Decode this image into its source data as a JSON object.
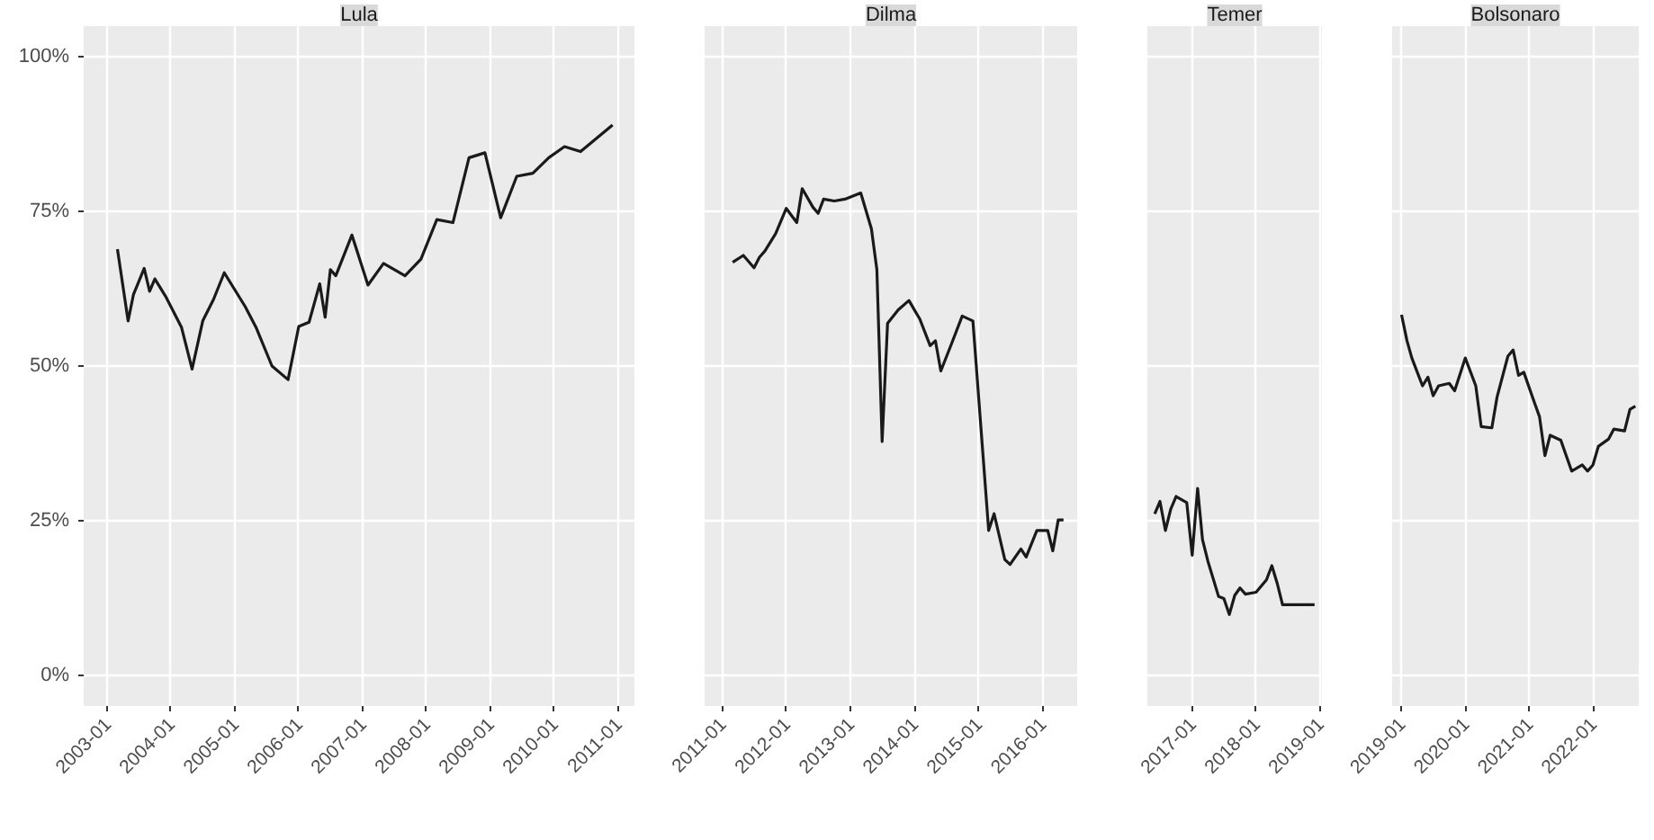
{
  "chart_data": [
    {
      "type": "line",
      "title": "Lula",
      "grid": true,
      "xlim": [
        "2002-08-20",
        "2011-04-05"
      ],
      "ylim": [
        -5,
        105
      ],
      "xticks": [
        "2003-01",
        "2004-01",
        "2005-01",
        "2006-01",
        "2007-01",
        "2008-01",
        "2009-01",
        "2010-01",
        "2011-01"
      ],
      "yticks": [
        {
          "value": 0,
          "label": "0%"
        },
        {
          "value": 25,
          "label": "25%"
        },
        {
          "value": 50,
          "label": "50%"
        },
        {
          "value": 75,
          "label": "75%"
        },
        {
          "value": 100,
          "label": "100%"
        }
      ],
      "x": [
        "2003-03",
        "2003-05",
        "2003-06",
        "2003-08",
        "2003-09",
        "2003-10",
        "2003-12",
        "2004-03",
        "2004-05",
        "2004-07",
        "2004-09",
        "2004-11",
        "2005-03",
        "2005-05",
        "2005-08",
        "2005-11",
        "2006-01",
        "2006-03",
        "2006-05",
        "2006-06",
        "2006-07",
        "2006-08",
        "2006-11",
        "2007-02",
        "2007-05",
        "2007-09",
        "2007-12",
        "2008-03",
        "2008-06",
        "2008-09",
        "2008-12",
        "2009-03",
        "2009-06",
        "2009-09",
        "2009-12",
        "2010-03",
        "2010-06",
        "2010-12"
      ],
      "series": [
        {
          "color": "#1a1a1a",
          "values": [
            68.9,
            57.3,
            61.6,
            65.8,
            62.1,
            64.1,
            61.3,
            56.3,
            49.5,
            57.3,
            60.8,
            65.1,
            59.6,
            56.3,
            50.0,
            47.8,
            56.4,
            57.1,
            63.3,
            57.9,
            65.6,
            64.6,
            71.2,
            63.1,
            66.6,
            64.6,
            67.3,
            73.7,
            73.2,
            83.7,
            84.5,
            74.0,
            80.7,
            81.2,
            83.7,
            85.5,
            84.7,
            89.0
          ]
        }
      ]
    },
    {
      "type": "line",
      "title": "Dilma",
      "grid": true,
      "tick_labels": "x",
      "xlim": [
        "2010-09-22",
        "2016-07-18"
      ],
      "ylim": [
        -5,
        105
      ],
      "xticks": [
        "2011-01",
        "2012-01",
        "2013-01",
        "2014-01",
        "2015-01",
        "2016-01"
      ],
      "yticks": [
        0,
        25,
        50,
        75,
        100
      ],
      "x": [
        "2011-03",
        "2011-05",
        "2011-07",
        "2011-08",
        "2011-09",
        "2011-11",
        "2012-01",
        "2012-03",
        "2012-04",
        "2012-06",
        "2012-07",
        "2012-08",
        "2012-10",
        "2012-12",
        "2013-03",
        "2013-05",
        "2013-06",
        "2013-07",
        "2013-08",
        "2013-10",
        "2013-12",
        "2014-02",
        "2014-04",
        "2014-05",
        "2014-06",
        "2014-08",
        "2014-10",
        "2014-12",
        "2015-03",
        "2015-04",
        "2015-06",
        "2015-07",
        "2015-09",
        "2015-10",
        "2015-12",
        "2016-02",
        "2016-03",
        "2016-04",
        "2016-05"
      ],
      "series": [
        {
          "color": "#1a1a1a",
          "values": [
            66.8,
            67.9,
            65.9,
            67.6,
            68.6,
            71.4,
            75.5,
            73.2,
            78.7,
            75.7,
            74.7,
            77.0,
            76.7,
            77.0,
            78.0,
            72.2,
            65.6,
            37.8,
            56.9,
            59.1,
            60.6,
            57.6,
            53.3,
            54.1,
            49.2,
            53.6,
            58.1,
            57.3,
            23.4,
            26.1,
            18.7,
            17.9,
            20.4,
            19.1,
            23.4,
            23.4,
            20.1,
            25.1,
            25.1
          ]
        }
      ]
    },
    {
      "type": "line",
      "title": "Temer",
      "grid": true,
      "tick_labels": "x",
      "xlim": [
        "2016-04-20",
        "2019-01-12"
      ],
      "ylim": [
        -5,
        105
      ],
      "xticks": [
        "2017-01",
        "2018-01",
        "2019-01"
      ],
      "yticks": [
        0,
        25,
        50,
        75,
        100
      ],
      "x": [
        "2016-06",
        "2016-07",
        "2016-08",
        "2016-09",
        "2016-10",
        "2016-12",
        "2017-01",
        "2017-02",
        "2017-03",
        "2017-04",
        "2017-06",
        "2017-07",
        "2017-08",
        "2017-09",
        "2017-10",
        "2017-11",
        "2018-01",
        "2018-03",
        "2018-04",
        "2018-05",
        "2018-06",
        "2018-12"
      ],
      "series": [
        {
          "color": "#1a1a1a",
          "values": [
            26.1,
            28.1,
            23.4,
            26.9,
            28.9,
            27.9,
            19.4,
            30.2,
            21.9,
            18.4,
            12.7,
            12.4,
            9.8,
            12.9,
            14.1,
            13.1,
            13.4,
            15.4,
            17.7,
            14.9,
            11.4,
            11.4
          ]
        }
      ]
    },
    {
      "type": "line",
      "title": "Bolsonaro",
      "grid": true,
      "tick_labels": "x",
      "xlim": [
        "2018-11-08",
        "2022-09-20"
      ],
      "ylim": [
        -5,
        105
      ],
      "xticks": [
        "2019-01",
        "2020-01",
        "2021-01",
        "2022-01"
      ],
      "yticks": [
        0,
        25,
        50,
        75,
        100
      ],
      "x": [
        "2019-01",
        "2019-02",
        "2019-03",
        "2019-04",
        "2019-05",
        "2019-06",
        "2019-07",
        "2019-08",
        "2019-10",
        "2019-11",
        "2020-01",
        "2020-03",
        "2020-04",
        "2020-06",
        "2020-07",
        "2020-09",
        "2020-10",
        "2020-11",
        "2020-12",
        "2021-02",
        "2021-03",
        "2021-04",
        "2021-05",
        "2021-07",
        "2021-09",
        "2021-11",
        "2021-12",
        "2022-01",
        "2022-02",
        "2022-04",
        "2022-05",
        "2022-07",
        "2022-08",
        "2022-09"
      ],
      "series": [
        {
          "color": "#1a1a1a",
          "values": [
            58.3,
            54.1,
            51.3,
            49.0,
            46.8,
            48.2,
            45.2,
            46.8,
            47.2,
            46.0,
            51.3,
            46.8,
            40.2,
            40.0,
            45.0,
            51.6,
            52.6,
            48.5,
            49.0,
            44.0,
            41.8,
            35.5,
            38.8,
            38.0,
            33.0,
            34.0,
            33.0,
            34.0,
            37.0,
            38.2,
            39.8,
            39.5,
            43.0,
            43.5
          ]
        }
      ]
    }
  ]
}
